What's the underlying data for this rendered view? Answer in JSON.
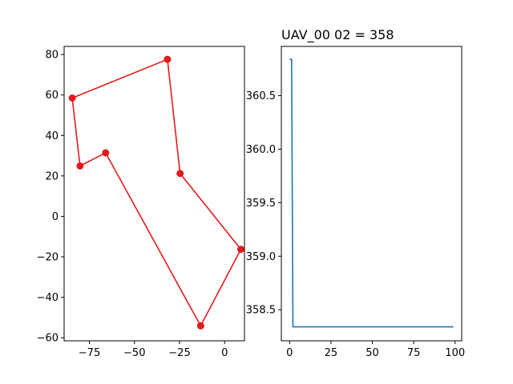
{
  "chart_data": [
    {
      "type": "line",
      "title": "",
      "xlabel": "",
      "ylabel": "",
      "xlim": [
        -89,
        11
      ],
      "ylim": [
        -61.5,
        84
      ],
      "xticks": [
        -75,
        -50,
        -25,
        0
      ],
      "xtick_labels": [
        "−75",
        "−50",
        "−25",
        "0"
      ],
      "yticks": [
        -60,
        -40,
        -20,
        0,
        20,
        40,
        60,
        80
      ],
      "ytick_labels": [
        "−60",
        "−40",
        "−20",
        "0",
        "20",
        "40",
        "60",
        "80"
      ],
      "grid": false,
      "series": [
        {
          "color": "#e31a1c",
          "marker": "circle",
          "closed": true,
          "points": [
            [
              -31.7,
              77.6
            ],
            [
              -84.5,
              58.5
            ],
            [
              -80.2,
              24.9
            ],
            [
              -66.0,
              31.4
            ],
            [
              -13.3,
              -54.1
            ],
            [
              9.0,
              -16.3
            ],
            [
              -24.7,
              21.2
            ],
            [
              -31.7,
              77.6
            ]
          ]
        }
      ]
    },
    {
      "type": "line",
      "title": "UAV_00 02 = 358",
      "xlabel": "",
      "ylabel": "",
      "xlim": [
        -5,
        104
      ],
      "ylim": [
        358.21,
        360.96
      ],
      "xticks": [
        0,
        25,
        50,
        75,
        100
      ],
      "xtick_labels": [
        "0",
        "25",
        "50",
        "75",
        "100"
      ],
      "yticks": [
        358.5,
        359.0,
        359.5,
        360.0,
        360.5
      ],
      "ytick_labels": [
        "358.5",
        "359.0",
        "359.5",
        "360.0",
        "360.5"
      ],
      "grid": false,
      "series": [
        {
          "color": "#1f77b4",
          "marker": "none",
          "points": [
            [
              0,
              360.84
            ],
            [
              1,
              360.84
            ],
            [
              1.2,
              360.84
            ],
            [
              2,
              358.34
            ],
            [
              99,
              358.34
            ]
          ]
        }
      ]
    }
  ]
}
